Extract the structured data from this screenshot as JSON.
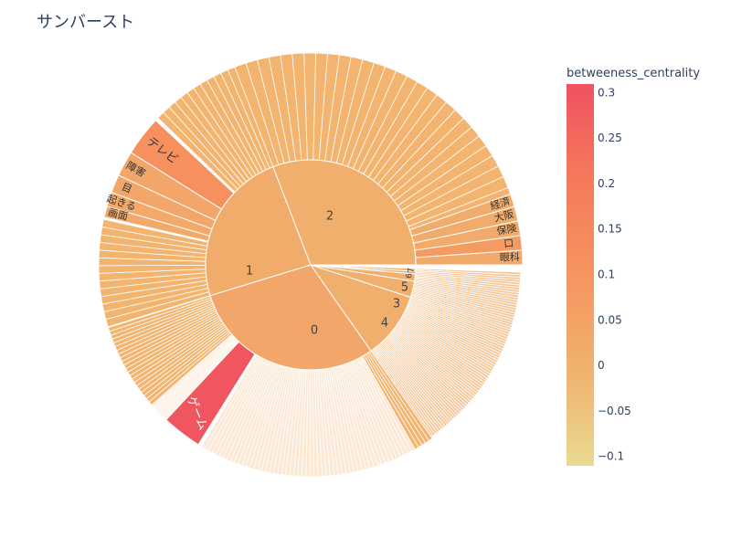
{
  "chart_data": {
    "type": "sunburst",
    "title": "サンバースト",
    "colorbar": {
      "title": "betweeness_centrality",
      "range": [
        -0.11,
        0.31
      ],
      "ticks": [
        "0.3",
        "0.25",
        "0.2",
        "0.15",
        "0.1",
        "0.05",
        "0",
        "−0.05",
        "−0.1"
      ],
      "tick_values": [
        0.3,
        0.25,
        0.2,
        0.15,
        0.1,
        0.05,
        0,
        -0.05,
        -0.1
      ],
      "colors": [
        "#e9d98f",
        "#f0b26f",
        "#f6955f",
        "#f47a5a",
        "#f05760",
        "#ef5261"
      ]
    },
    "inner_ring": [
      {
        "label": "0",
        "start_deg": 145,
        "end_deg": 253,
        "value": 0.04
      },
      {
        "label": "1",
        "start_deg": 253,
        "end_deg": 339,
        "value": 0.02
      },
      {
        "label": "2",
        "start_deg": 339,
        "end_deg": 450,
        "value": 0.01
      },
      {
        "label": "4",
        "start_deg": 108,
        "end_deg": 145,
        "value": 0.01
      },
      {
        "label": "3",
        "start_deg": 99,
        "end_deg": 108,
        "value": 0.01
      },
      {
        "label": "5",
        "start_deg": 95,
        "end_deg": 99,
        "value": 0.01
      },
      {
        "label": "6",
        "start_deg": 93.5,
        "end_deg": 95,
        "value": 0.01
      },
      {
        "label": "7",
        "start_deg": 92,
        "end_deg": 93.5,
        "value": 0.01
      }
    ],
    "outer_labeled": [
      {
        "label": "眼科",
        "start_deg": 86,
        "end_deg": 90,
        "value": 0.03
      },
      {
        "label": "口",
        "start_deg": 82,
        "end_deg": 86,
        "value": 0.08
      },
      {
        "label": "保険",
        "start_deg": 78,
        "end_deg": 82,
        "value": 0.02
      },
      {
        "label": "大阪",
        "start_deg": 74,
        "end_deg": 78,
        "value": 0.02
      },
      {
        "label": "経済",
        "start_deg": 70.5,
        "end_deg": 74,
        "value": 0.02
      },
      {
        "label": "テレビ",
        "start_deg": 302,
        "end_deg": 313,
        "value": 0.12
      },
      {
        "label": "障害",
        "start_deg": 295,
        "end_deg": 302,
        "value": 0.04
      },
      {
        "label": "目",
        "start_deg": 290,
        "end_deg": 295,
        "value": 0.04
      },
      {
        "label": "起きる",
        "start_deg": 286,
        "end_deg": 290,
        "value": 0.03
      },
      {
        "label": "画面",
        "start_deg": 283,
        "end_deg": 286,
        "value": 0.03
      },
      {
        "label": "ゲーム",
        "start_deg": 212,
        "end_deg": 223,
        "value": 0.3
      }
    ]
  }
}
